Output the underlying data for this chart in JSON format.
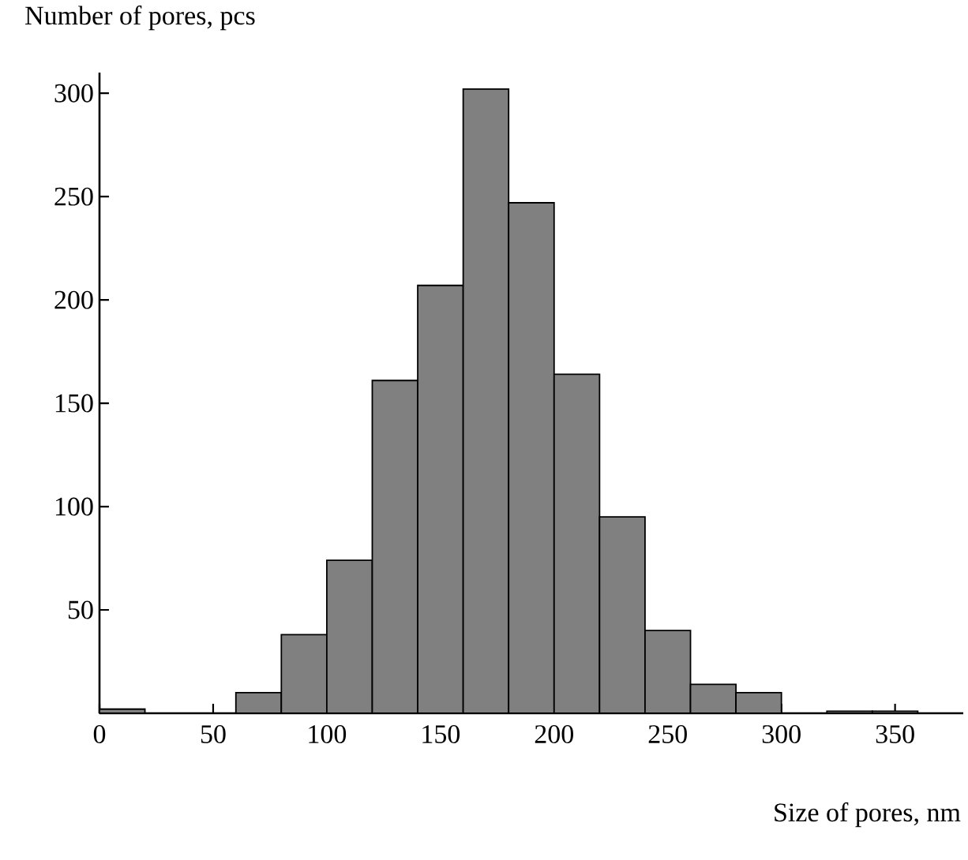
{
  "chart_data": {
    "type": "histogram",
    "xlabel": "Size of pores, nm",
    "ylabel": "Number of pores, pcs",
    "bins": [
      0,
      20,
      40,
      60,
      80,
      100,
      120,
      140,
      160,
      180,
      200,
      220,
      240,
      260,
      280,
      300,
      320,
      340,
      360
    ],
    "values": [
      2,
      0,
      0,
      10,
      38,
      74,
      161,
      207,
      302,
      247,
      164,
      95,
      40,
      14,
      10,
      0,
      1,
      1
    ],
    "color": "#808080",
    "xlim": [
      0,
      380
    ],
    "ylim": [
      0,
      310
    ],
    "xticks": [
      0,
      50,
      100,
      150,
      200,
      250,
      300,
      350
    ],
    "yticks": [
      50,
      100,
      150,
      200,
      250,
      300
    ]
  }
}
